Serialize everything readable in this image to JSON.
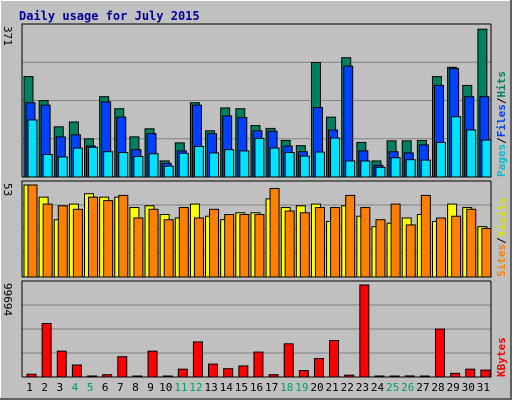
{
  "chart_data": {
    "type": "bar",
    "title": "Daily usage for July 2015",
    "categories": [
      "1",
      "2",
      "3",
      "4",
      "5",
      "6",
      "7",
      "8",
      "9",
      "10",
      "11",
      "12",
      "13",
      "14",
      "15",
      "16",
      "17",
      "18",
      "19",
      "20",
      "21",
      "22",
      "23",
      "24",
      "25",
      "26",
      "27",
      "28",
      "29",
      "30",
      "31"
    ],
    "weekend_days": [
      "4",
      "5",
      "11",
      "12",
      "18",
      "19",
      "25",
      "26"
    ],
    "panels": [
      {
        "id": "hits",
        "ymax_label": "371",
        "ymax": 371,
        "legend": [
          {
            "label": "Pages",
            "color": "#00c0d0"
          },
          {
            "label": "/",
            "color": "#000000"
          },
          {
            "label": "Files",
            "color": "#0040ff"
          },
          {
            "label": "/",
            "color": "#000000"
          },
          {
            "label": "Hits",
            "color": "#008060"
          }
        ],
        "series": [
          {
            "name": "Hits",
            "color": "#008060",
            "values": [
              250,
              190,
              125,
              137,
              95,
              200,
              170,
              100,
              120,
              40,
              85,
              185,
              115,
              172,
              170,
              128,
              121,
              91,
              78,
              285,
              149,
              297,
              86,
              40,
              90,
              90,
              91,
              250,
              273,
              228,
              368
            ]
          },
          {
            "name": "Files",
            "color": "#0040ff",
            "values": [
              185,
              179,
              100,
              105,
              77,
              187,
              149,
              68,
              108,
              34,
              65,
              179,
              108,
              152,
              148,
              115,
              114,
              77,
              63,
              173,
              117,
              276,
              65,
              29,
              63,
              60,
              80,
              228,
              270,
              200,
              200
            ]
          },
          {
            "name": "Pages",
            "color": "#00e0ff",
            "values": [
              142,
              56,
              50,
              72,
              74,
              63,
              61,
              51,
              58,
              27,
              59,
              76,
              60,
              68,
              65,
              96,
              72,
              61,
              52,
              62,
              97,
              40,
              40,
              24,
              48,
              43,
              42,
              86,
              150,
              117,
              92
            ]
          }
        ]
      },
      {
        "id": "visits",
        "ymax_label": "53",
        "ymax": 53,
        "legend": [
          {
            "label": "Sites",
            "color": "#ff8000"
          },
          {
            "label": "/",
            "color": "#000000"
          },
          {
            "label": "Visits",
            "color": "#e0e000"
          }
        ],
        "series": [
          {
            "name": "Visits",
            "color": "#ffff00",
            "values": [
              53,
              46,
              33,
              42,
              48,
              46,
              46,
              40,
              41,
              36,
              34,
              42,
              35,
              33,
              37,
              37,
              45,
              40,
              41,
              42,
              32,
              41,
              35,
              29,
              31,
              34,
              36,
              32,
              42,
              40,
              29
            ]
          },
          {
            "name": "Sites",
            "color": "#ff8000",
            "values": [
              53,
              42,
              41,
              39,
              46,
              44,
              47,
              34,
              39,
              33,
              40,
              34,
              39,
              36,
              36,
              36,
              51,
              38,
              37,
              40,
              40,
              47,
              40,
              33,
              42,
              30,
              47,
              34,
              35,
              39,
              28
            ]
          }
        ]
      },
      {
        "id": "kbytes",
        "ymax_label": "99694",
        "ymax": 99694,
        "legend": [
          {
            "label": "KBytes",
            "color": "#ff0000"
          }
        ],
        "series": [
          {
            "name": "KBytes",
            "color": "#ff0000",
            "values": [
              3000,
              58000,
              28000,
              13000,
              500,
              2500,
              22000,
              1000,
              28000,
              500,
              8500,
              38000,
              14000,
              9000,
              12000,
              27000,
              2500,
              36000,
              7000,
              20000,
              39500,
              2000,
              99694,
              1000,
              800,
              1200,
              700,
              52000,
              4000,
              8500,
              7500
            ]
          }
        ]
      }
    ]
  }
}
